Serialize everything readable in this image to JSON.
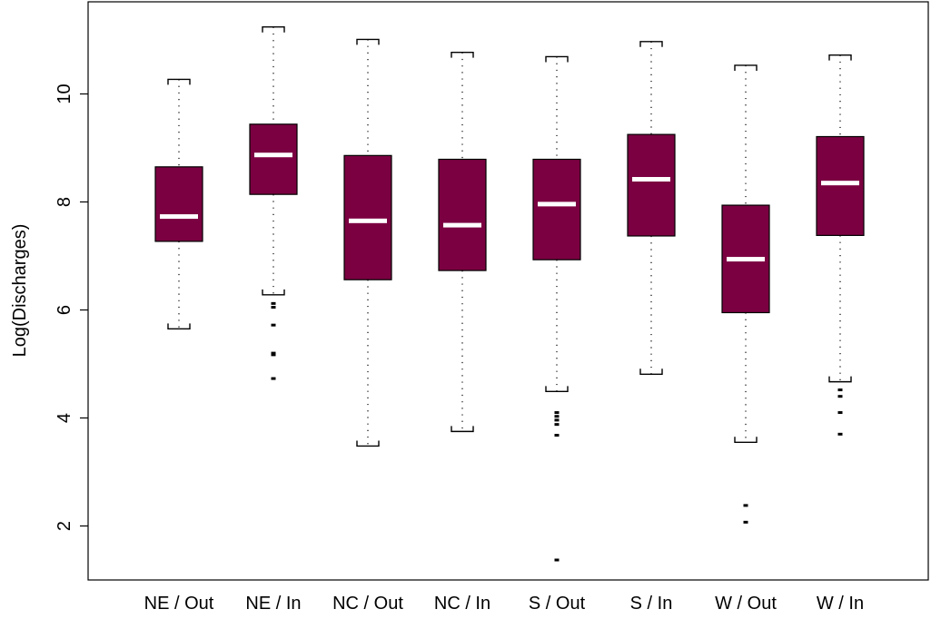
{
  "chart_data": {
    "type": "box",
    "title": "",
    "xlabel": "",
    "ylabel": "Log(Discharges)",
    "ylim": [
      1.0,
      11.6
    ],
    "yticks": [
      2,
      4,
      6,
      8,
      10
    ],
    "ytick_labels": [
      "2",
      "4",
      "6",
      "8",
      "10"
    ],
    "grid": false,
    "legend": "none",
    "box_color": "#7b0041",
    "median_color": "#ffffff",
    "categories": [
      "NE / Out",
      "NE / In",
      "NC / Out",
      "NC / In",
      "S / Out",
      "S / In",
      "W / Out",
      "W / In"
    ],
    "boxes": [
      {
        "label": "NE / Out",
        "whisker_low": 5.65,
        "q1": 7.27,
        "median": 7.73,
        "q3": 8.65,
        "whisker_high": 10.27,
        "outliers": []
      },
      {
        "label": "NE / In",
        "whisker_low": 6.28,
        "q1": 8.14,
        "median": 8.87,
        "q3": 9.44,
        "whisker_high": 11.24,
        "outliers": [
          6.12,
          6.05,
          5.72,
          5.2,
          5.17,
          4.73
        ]
      },
      {
        "label": "NC / Out",
        "whisker_low": 3.48,
        "q1": 6.56,
        "median": 7.65,
        "q3": 8.86,
        "whisker_high": 11.01,
        "outliers": []
      },
      {
        "label": "NC / In",
        "whisker_low": 3.75,
        "q1": 6.73,
        "median": 7.57,
        "q3": 8.79,
        "whisker_high": 10.77,
        "outliers": []
      },
      {
        "label": "S / Out",
        "whisker_low": 4.49,
        "q1": 6.93,
        "median": 7.96,
        "q3": 8.79,
        "whisker_high": 10.69,
        "outliers": [
          4.1,
          4.03,
          3.96,
          3.88,
          3.68,
          1.37
        ]
      },
      {
        "label": "S / In",
        "whisker_low": 4.81,
        "q1": 7.37,
        "median": 8.42,
        "q3": 9.25,
        "whisker_high": 10.97,
        "outliers": []
      },
      {
        "label": "W / Out",
        "whisker_low": 3.55,
        "q1": 5.95,
        "median": 6.94,
        "q3": 7.94,
        "whisker_high": 10.53,
        "outliers": [
          2.38,
          2.07
        ]
      },
      {
        "label": "W / In",
        "whisker_low": 4.67,
        "q1": 7.38,
        "median": 8.35,
        "q3": 9.21,
        "whisker_high": 10.72,
        "outliers": [
          4.52,
          4.4,
          4.1,
          3.7
        ]
      }
    ]
  }
}
